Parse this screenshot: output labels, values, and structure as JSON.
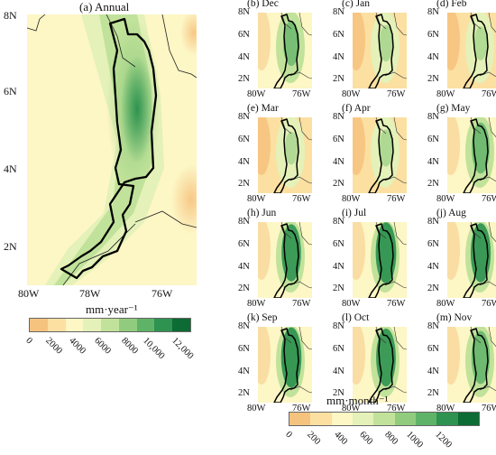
{
  "annual": {
    "title": "(a) Annual",
    "y_labels": [
      "8N",
      "6N",
      "4N",
      "2N"
    ],
    "x_labels": [
      "80W",
      "78W",
      "76W"
    ],
    "colorbar": {
      "unit": "mm·year⁻¹",
      "ticks": [
        "0",
        "2000",
        "4000",
        "6000",
        "8000",
        "10,000",
        "12,000"
      ],
      "colors": [
        "#f6c37f",
        "#fbe0a2",
        "#fdf6c5",
        "#e4f1b8",
        "#c1e29a",
        "#91cc7e",
        "#5fb368",
        "#2e9350",
        "#0d6b34"
      ]
    }
  },
  "monthly": {
    "y_labels": [
      "8N",
      "6N",
      "4N",
      "2N"
    ],
    "x_labels": [
      "80W",
      "76W"
    ],
    "panels": [
      {
        "title": "(b) Dec",
        "intensity": 0.5
      },
      {
        "title": "(c) Jan",
        "intensity": 0.28
      },
      {
        "title": "(d) Feb",
        "intensity": 0.22
      },
      {
        "title": "(e) Mar",
        "intensity": 0.2
      },
      {
        "title": "(f) Apr",
        "intensity": 0.3
      },
      {
        "title": "(g) May",
        "intensity": 0.65
      },
      {
        "title": "(h) Jun",
        "intensity": 0.8
      },
      {
        "title": "(i) Jul",
        "intensity": 0.9
      },
      {
        "title": "(j) Aug",
        "intensity": 0.85
      },
      {
        "title": "(k) Sep",
        "intensity": 0.88
      },
      {
        "title": "(l) Oct",
        "intensity": 0.82
      },
      {
        "title": "(m) Nov",
        "intensity": 0.7
      }
    ],
    "colorbar": {
      "unit": "mm·month⁻¹",
      "ticks": [
        "0",
        "200",
        "400",
        "600",
        "800",
        "1000",
        "1200"
      ],
      "colors": [
        "#f6c37f",
        "#fbe0a2",
        "#fdf6c5",
        "#e4f1b8",
        "#c1e29a",
        "#91cc7e",
        "#5fb368",
        "#2e9350",
        "#0d6b34"
      ]
    }
  }
}
